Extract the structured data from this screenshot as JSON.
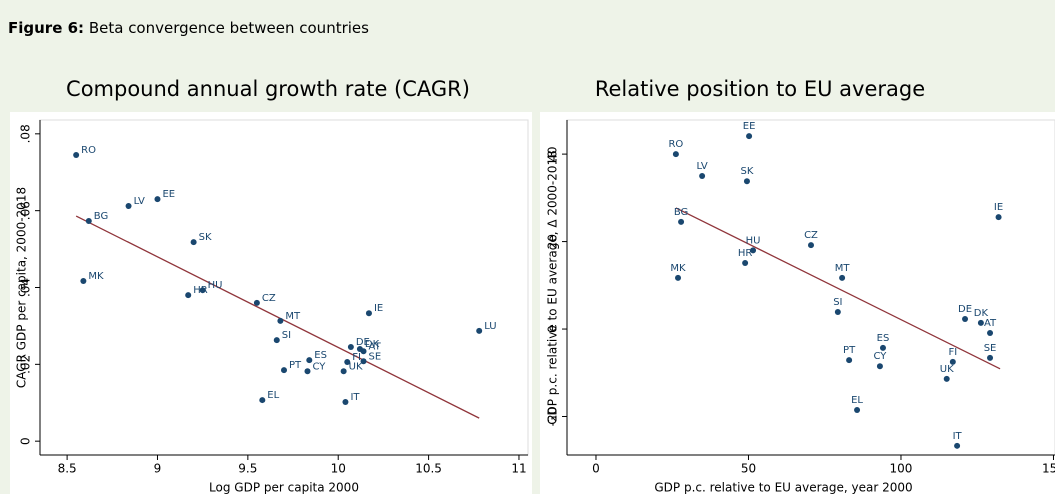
{
  "figure": {
    "label": "Figure 6:",
    "title": "Beta convergence between countries"
  },
  "chart_data": [
    {
      "type": "scatter",
      "title": "Compound annual growth rate (CAGR)",
      "x_label": "Log GDP per capita 2000",
      "y_label": "CAGR GDP per capita, 2000-2018",
      "xlim": [
        8.35,
        11.05
      ],
      "ylim": [
        -0.0036,
        0.0836
      ],
      "xticks": [
        8.5,
        9,
        9.5,
        10,
        10.5,
        11
      ],
      "yticks": [
        0,
        {
          "value": 0.02,
          "label": ".02"
        },
        {
          "value": 0.04,
          "label": ".04"
        },
        {
          "value": 0.06,
          "label": ".06"
        },
        {
          "value": 0.08,
          "label": ".08"
        }
      ],
      "series": [
        {
          "color": "#1a476f",
          "labels": [
            "RO",
            "BG",
            "LV",
            "EE",
            "MK",
            "SK",
            "HR",
            "HU",
            "CZ",
            "MT",
            "SI",
            "IE",
            "LU",
            "DE",
            "DK",
            "AT",
            "FI",
            "SE",
            "ES",
            "PT",
            "CY",
            "UK",
            "EL",
            "IT"
          ],
          "x": [
            8.55,
            8.62,
            8.84,
            9.0,
            8.59,
            9.2,
            9.17,
            9.25,
            9.55,
            9.68,
            9.66,
            10.17,
            10.78,
            10.07,
            10.12,
            10.14,
            10.05,
            10.14,
            9.84,
            9.7,
            9.83,
            10.03,
            9.58,
            10.04
          ],
          "y": [
            0.0745,
            0.0573,
            0.0612,
            0.063,
            0.0417,
            0.0518,
            0.038,
            0.0393,
            0.036,
            0.0313,
            0.0263,
            0.0333,
            0.0287,
            0.0245,
            0.024,
            0.0234,
            0.0206,
            0.0208,
            0.0211,
            0.0185,
            0.0182,
            0.0182,
            0.0107,
            0.0102
          ]
        }
      ],
      "fit": {
        "color": "#90353b",
        "x": [
          8.55,
          10.78
        ],
        "y": [
          0.0586,
          0.006
        ]
      }
    },
    {
      "type": "scatter",
      "title": "Relative position to EU average",
      "x_label": "GDP p.c. relative to EU average, year 2000",
      "y_label": "GDP p.c. relative to EU average, Δ 2000-2018",
      "xlim": [
        -9.5,
        150.5
      ],
      "ylim": [
        -28.8,
        47.8
      ],
      "xticks": [
        0,
        50,
        100,
        150
      ],
      "yticks": [
        -20,
        0,
        20,
        40
      ],
      "series": [
        {
          "color": "#1a476f",
          "labels": [
            "EE",
            "RO",
            "LV",
            "SK",
            "BG",
            "IE",
            "CZ",
            "HU",
            "HR",
            "MT",
            "MK",
            "SI",
            "DE",
            "DK",
            "AT",
            "SE",
            "ES",
            "PT",
            "CY",
            "FI",
            "UK",
            "EL",
            "IT"
          ],
          "x": [
            50.2,
            26.2,
            34.8,
            49.5,
            27.9,
            132,
            70.5,
            51.5,
            48.9,
            80.7,
            26.9,
            79.3,
            121,
            126.2,
            129.2,
            129.2,
            94.1,
            83,
            93.1,
            117,
            115,
            85.6,
            118.4
          ],
          "y": [
            44.1,
            40,
            35,
            33.8,
            24.5,
            25.6,
            19.2,
            18,
            15.1,
            11.7,
            11.7,
            3.9,
            2.3,
            1.4,
            -0.9,
            -6.6,
            -4.3,
            -7.1,
            -8.5,
            -7.5,
            -11.4,
            -18.5,
            -26.7
          ]
        }
      ],
      "fit": {
        "color": "#90353b",
        "x": [
          26.2,
          132.5
        ],
        "y": [
          27.7,
          -9.1
        ]
      }
    }
  ]
}
